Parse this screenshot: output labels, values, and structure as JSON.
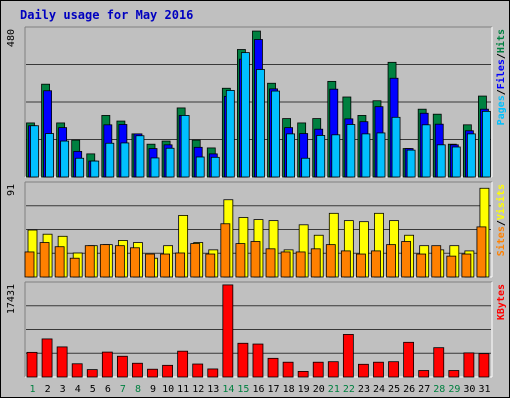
{
  "title": "Daily usage for May 2016",
  "colors": {
    "background": "#c0c0c0",
    "plot_background": "#c0c0c0",
    "title_text": "#0000c0",
    "hits": "#008040",
    "files": "#0000ff",
    "pages": "#00c0ff",
    "visits": "#ffff00",
    "sites": "#ff8000",
    "kbytes": "#ff0000",
    "weekend_day": "#008040",
    "weekday": "#000000"
  },
  "chart_data": [
    {
      "type": "bar",
      "panel": "hits-files-pages",
      "ymax_label": "480",
      "ylim": [
        0,
        480
      ],
      "right_legend": [
        {
          "text": "Pages",
          "color": "#00c0ff"
        },
        {
          "text": "/",
          "color": "#000000"
        },
        {
          "text": "Files",
          "color": "#0000ff"
        },
        {
          "text": "/",
          "color": "#000000"
        },
        {
          "text": "Hits",
          "color": "#008040"
        }
      ],
      "categories": [
        "1",
        "2",
        "3",
        "4",
        "5",
        "6",
        "7",
        "8",
        "9",
        "10",
        "11",
        "12",
        "13",
        "14",
        "15",
        "16",
        "17",
        "18",
        "19",
        "20",
        "21",
        "22",
        "23",
        "24",
        "25",
        "26",
        "27",
        "28",
        "29",
        "30",
        "31"
      ],
      "series": [
        {
          "name": "Hits",
          "values": [
            173,
            297,
            173,
            118,
            74,
            197,
            179,
            138,
            105,
            115,
            221,
            118,
            93,
            284,
            408,
            467,
            300,
            187,
            173,
            187,
            306,
            256,
            197,
            244,
            367,
            91,
            217,
            201,
            105,
            167,
            259
          ]
        },
        {
          "name": "Files",
          "values": [
            164,
            276,
            158,
            82,
            51,
            167,
            168,
            138,
            91,
            103,
            197,
            95,
            74,
            258,
            377,
            440,
            282,
            158,
            139,
            153,
            281,
            186,
            177,
            225,
            316,
            91,
            204,
            169,
            103,
            148,
            217
          ]
        },
        {
          "name": "Pages",
          "values": [
            164,
            139,
            115,
            60,
            51,
            108,
            109,
            132,
            61,
            92,
            197,
            64,
            63,
            277,
            398,
            344,
            275,
            138,
            60,
            133,
            135,
            168,
            138,
            141,
            191,
            86,
            167,
            103,
            96,
            138,
            210
          ]
        }
      ]
    },
    {
      "type": "bar",
      "panel": "visits-sites",
      "ymax_label": "91",
      "ylim": [
        0,
        91
      ],
      "right_legend": [
        {
          "text": "Sites",
          "color": "#ff8000"
        },
        {
          "text": "/",
          "color": "#000000"
        },
        {
          "text": "Visits",
          "color": "#ffff00"
        }
      ],
      "categories": [
        "1",
        "2",
        "3",
        "4",
        "5",
        "6",
        "7",
        "8",
        "9",
        "10",
        "11",
        "12",
        "13",
        "14",
        "15",
        "16",
        "17",
        "18",
        "19",
        "20",
        "21",
        "22",
        "23",
        "24",
        "25",
        "26",
        "27",
        "28",
        "29",
        "30",
        "31"
      ],
      "series": [
        {
          "name": "Visits",
          "values": [
            45,
            41,
            39,
            23,
            30,
            31,
            35,
            33,
            18,
            30,
            59,
            33,
            26,
            74,
            57,
            55,
            54,
            26,
            50,
            40,
            61,
            54,
            53,
            61,
            54,
            40,
            30,
            26,
            30,
            25,
            85
          ]
        },
        {
          "name": "Sites",
          "values": [
            24,
            33,
            29,
            18,
            30,
            31,
            30,
            28,
            22,
            22,
            23,
            32,
            22,
            51,
            32,
            34,
            27,
            24,
            24,
            27,
            31,
            25,
            22,
            25,
            31,
            34,
            22,
            30,
            20,
            22,
            48
          ]
        }
      ]
    },
    {
      "type": "bar",
      "panel": "kbytes",
      "ymax_label": "17431",
      "ylim": [
        0,
        17431
      ],
      "right_legend": [
        {
          "text": "KBytes",
          "color": "#ff0000"
        }
      ],
      "categories": [
        "1",
        "2",
        "3",
        "4",
        "5",
        "6",
        "7",
        "8",
        "9",
        "10",
        "11",
        "12",
        "13",
        "14",
        "15",
        "16",
        "17",
        "18",
        "19",
        "20",
        "21",
        "22",
        "23",
        "24",
        "25",
        "26",
        "27",
        "28",
        "29",
        "30",
        "31"
      ],
      "series": [
        {
          "name": "KBytes",
          "values": [
            4522,
            6986,
            5523,
            2428,
            1357,
            4571,
            3808,
            2523,
            1428,
            2143,
            4738,
            2381,
            1476,
            16897,
            6190,
            6047,
            3428,
            2714,
            1024,
            2714,
            2809,
            7809,
            2333,
            2714,
            2809,
            6366,
            1190,
            5380,
            1190,
            4425,
            4285
          ]
        }
      ]
    }
  ],
  "x_days": [
    {
      "label": "1",
      "weekend": true
    },
    {
      "label": "2",
      "weekend": false
    },
    {
      "label": "3",
      "weekend": false
    },
    {
      "label": "4",
      "weekend": false
    },
    {
      "label": "5",
      "weekend": false
    },
    {
      "label": "6",
      "weekend": false
    },
    {
      "label": "7",
      "weekend": true
    },
    {
      "label": "8",
      "weekend": true
    },
    {
      "label": "9",
      "weekend": false
    },
    {
      "label": "10",
      "weekend": false
    },
    {
      "label": "11",
      "weekend": false
    },
    {
      "label": "12",
      "weekend": false
    },
    {
      "label": "13",
      "weekend": false
    },
    {
      "label": "14",
      "weekend": true
    },
    {
      "label": "15",
      "weekend": true
    },
    {
      "label": "16",
      "weekend": false
    },
    {
      "label": "17",
      "weekend": false
    },
    {
      "label": "18",
      "weekend": false
    },
    {
      "label": "19",
      "weekend": false
    },
    {
      "label": "20",
      "weekend": false
    },
    {
      "label": "21",
      "weekend": true
    },
    {
      "label": "22",
      "weekend": true
    },
    {
      "label": "23",
      "weekend": false
    },
    {
      "label": "24",
      "weekend": false
    },
    {
      "label": "25",
      "weekend": false
    },
    {
      "label": "26",
      "weekend": false
    },
    {
      "label": "27",
      "weekend": false
    },
    {
      "label": "28",
      "weekend": true
    },
    {
      "label": "29",
      "weekend": true
    },
    {
      "label": "30",
      "weekend": false
    },
    {
      "label": "31",
      "weekend": false
    }
  ]
}
